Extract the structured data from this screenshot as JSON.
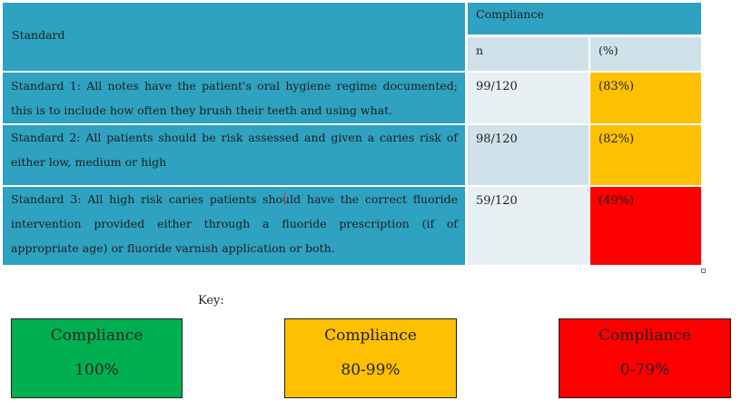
{
  "table": {
    "header": {
      "standard_label": "Standard",
      "compliance_label": "Compliance",
      "n_label": "n",
      "pct_label": "(%)"
    },
    "rows": [
      {
        "standard": "Standard 1: All notes have the patient's oral hygiene regime documented; this is to include how often they brush their teeth and using what.",
        "n": "99/120",
        "pct": "(83%)",
        "status_color": "#fec000"
      },
      {
        "standard": "Standard 2: All patients should be risk assessed and given a caries risk of either low, medium or high",
        "n": "98/120",
        "pct": "(82%)",
        "status_color": "#fec000"
      },
      {
        "standard": "Standard 3: All high risk caries patients should have the correct fluoride intervention provided either through a fluoride prescription (if of appropriate age) or fluoride varnish application or both.",
        "n": "59/120",
        "pct": "(49%)",
        "status_color": "#fe0000"
      }
    ]
  },
  "key": {
    "label": "Key:",
    "items": [
      {
        "title": "Compliance",
        "range": "100%",
        "color": "#00b050"
      },
      {
        "title": "Compliance",
        "range": "80-99%",
        "color": "#fec000"
      },
      {
        "title": "Compliance",
        "range": "0-79%",
        "color": "#fe0000"
      }
    ]
  },
  "colors": {
    "header_teal": "#2ea2c0",
    "subheader_pale": "#cfe2ea",
    "amber": "#fec000",
    "red": "#fe0000",
    "green": "#00b050"
  }
}
